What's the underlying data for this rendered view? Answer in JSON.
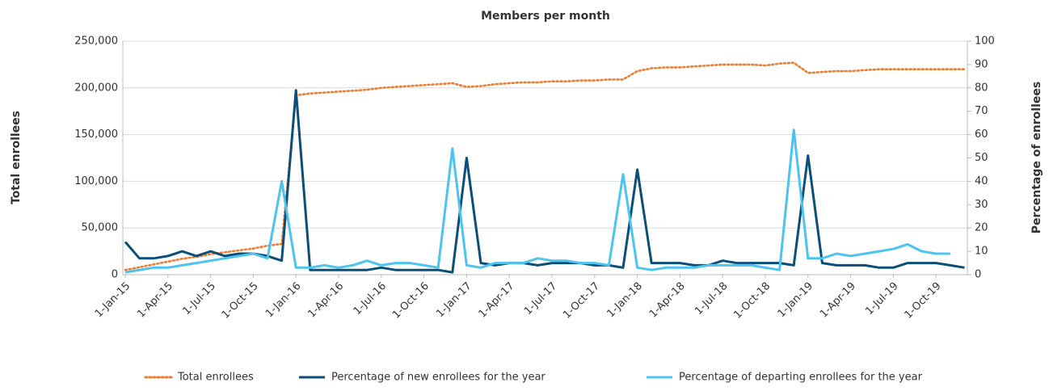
{
  "chart_data": {
    "type": "line",
    "title": "Members per month",
    "y_label": "Total enrollees",
    "y2_label": "Percentage of enrollees",
    "categories": [
      "1-Jan-15",
      null,
      null,
      "1-Apr-15",
      null,
      null,
      "1-Jul-15",
      null,
      null,
      "1-Oct-15",
      null,
      null,
      "1-Jan-16",
      null,
      null,
      "1-Apr-16",
      null,
      null,
      "1-Jul-16",
      null,
      null,
      "1-Oct-16",
      null,
      null,
      "1-Jan-17",
      null,
      null,
      "1-Apr-17",
      null,
      null,
      "1-Jul-17",
      null,
      null,
      "1-Oct-17",
      null,
      null,
      "1-Jan-18",
      null,
      null,
      "1-Apr-18",
      null,
      null,
      "1-Jul-18",
      null,
      null,
      "1-Oct-18",
      null,
      null,
      "1-Jan-19",
      null,
      null,
      "1-Apr-19",
      null,
      null,
      "1-Jul-19",
      null,
      null,
      "1-Oct-19",
      null,
      null
    ],
    "series": [
      {
        "name": "Total enrollees",
        "color": "#ed7d31",
        "dashed": true,
        "axis": "y",
        "values": [
          5000,
          8000,
          11000,
          14000,
          17000,
          19000,
          22000,
          24000,
          26000,
          28000,
          31000,
          33000,
          192000,
          194000,
          195000,
          196000,
          197000,
          198000,
          200000,
          201000,
          202000,
          203000,
          204000,
          205000,
          201000,
          202000,
          204000,
          205000,
          206000,
          206000,
          207000,
          207000,
          208000,
          208000,
          209000,
          209000,
          218000,
          221000,
          222000,
          222000,
          223000,
          224000,
          225000,
          225000,
          225000,
          224000,
          226000,
          227000,
          216000,
          217000,
          218000,
          218000,
          219000,
          220000,
          220000,
          220000,
          220000,
          220000,
          220000,
          220000
        ]
      },
      {
        "name": "Percentage of new enrollees for the year",
        "color": "#0b4f79",
        "axis": "y2",
        "values": [
          14,
          7,
          7,
          8,
          10,
          8,
          10,
          8,
          9,
          9,
          8,
          6,
          79,
          2,
          2,
          2,
          2,
          2,
          3,
          2,
          2,
          2,
          2,
          1,
          50,
          5,
          4,
          5,
          5,
          4,
          5,
          5,
          5,
          4,
          4,
          3,
          45,
          5,
          5,
          5,
          4,
          4,
          6,
          5,
          5,
          5,
          5,
          4,
          51,
          5,
          4,
          4,
          4,
          3,
          3,
          5,
          5,
          5,
          4,
          3
        ]
      },
      {
        "name": "Percentage of departing enrollees for the year",
        "color": "#4cc4ef",
        "axis": "y2",
        "values": [
          1,
          2,
          3,
          3,
          4,
          5,
          6,
          7,
          8,
          9,
          7,
          40,
          3,
          3,
          4,
          3,
          4,
          6,
          4,
          5,
          5,
          4,
          3,
          54,
          4,
          3,
          5,
          5,
          5,
          7,
          6,
          6,
          5,
          5,
          4,
          43,
          3,
          2,
          3,
          3,
          3,
          4,
          4,
          4,
          4,
          3,
          2,
          62,
          7,
          7,
          9,
          8,
          9,
          10,
          11,
          13,
          10,
          9,
          9,
          null
        ]
      }
    ],
    "ylim": [
      0,
      250000
    ],
    "yticks": [
      0,
      {
        "value": 50000,
        "label": "50,000"
      },
      {
        "value": 100000,
        "label": "100,000"
      },
      {
        "value": 150000,
        "label": "150,000"
      },
      {
        "value": 200000,
        "label": "200,000"
      },
      {
        "value": 250000,
        "label": "250,000"
      }
    ],
    "y2lim": [
      0,
      100
    ],
    "y2ticks": [
      0,
      10,
      20,
      30,
      40,
      50,
      60,
      70,
      80,
      90,
      100
    ],
    "grid": true
  }
}
